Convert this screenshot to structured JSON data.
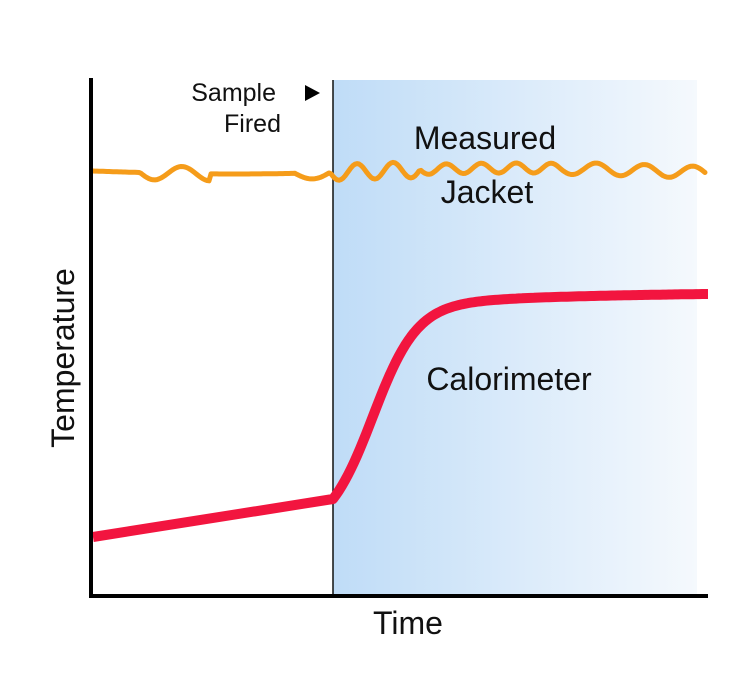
{
  "chart_data": {
    "type": "line",
    "xlabel": "Time",
    "ylabel": "Temperature",
    "grid": false,
    "legend": "none",
    "event": {
      "label_line1": "Sample",
      "label_line2": "Fired",
      "marker": "right-pointing triangle"
    },
    "shaded_region": {
      "description_hidden": true,
      "color_start": "#bfdcf7",
      "color_end": "#f5f9fd"
    },
    "series": [
      {
        "name": "Measured Jacket",
        "label_line1": "Measured",
        "label_line2": "Jacket",
        "color": "#f59c1a",
        "behavior": "roughly constant with small fluctuations"
      },
      {
        "name": "Calorimeter",
        "label": "Calorimeter",
        "color": "#f2153f",
        "behavior": "slow linear rise, sharp rise after firing, then levels off"
      }
    ]
  }
}
